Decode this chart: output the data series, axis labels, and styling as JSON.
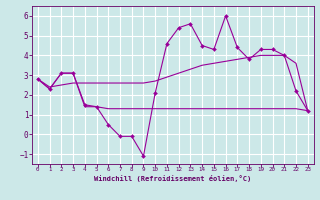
{
  "xlabel": "Windchill (Refroidissement éolien,°C)",
  "xlim": [
    -0.5,
    23.5
  ],
  "ylim": [
    -1.5,
    6.5
  ],
  "yticks": [
    -1,
    0,
    1,
    2,
    3,
    4,
    5,
    6
  ],
  "xticks": [
    0,
    1,
    2,
    3,
    4,
    5,
    6,
    7,
    8,
    9,
    10,
    11,
    12,
    13,
    14,
    15,
    16,
    17,
    18,
    19,
    20,
    21,
    22,
    23
  ],
  "bg_color": "#cce8e8",
  "grid_color": "#ffffff",
  "line_color": "#990099",
  "curve1_x": [
    0,
    1,
    2,
    3,
    4,
    5,
    6,
    7,
    8,
    9,
    10,
    11,
    12,
    13,
    14,
    15,
    16,
    17,
    18,
    19,
    20,
    21,
    22,
    23
  ],
  "curve1_y": [
    2.8,
    2.3,
    3.1,
    3.1,
    1.5,
    1.4,
    0.5,
    -0.1,
    -0.1,
    -1.1,
    2.1,
    4.6,
    5.4,
    5.6,
    4.5,
    4.3,
    6.0,
    4.4,
    3.8,
    4.3,
    4.3,
    4.0,
    2.2,
    1.2
  ],
  "curve2_x": [
    0,
    1,
    2,
    3,
    4,
    5,
    6,
    7,
    8,
    9,
    10,
    11,
    12,
    13,
    14,
    15,
    16,
    17,
    18,
    19,
    20,
    21,
    22,
    23
  ],
  "curve2_y": [
    2.8,
    2.4,
    2.5,
    2.6,
    2.6,
    2.6,
    2.6,
    2.6,
    2.6,
    2.6,
    2.7,
    2.9,
    3.1,
    3.3,
    3.5,
    3.6,
    3.7,
    3.8,
    3.9,
    4.0,
    4.0,
    4.0,
    3.6,
    1.2
  ],
  "curve3_x": [
    0,
    1,
    2,
    3,
    4,
    5,
    6,
    7,
    8,
    9,
    10,
    11,
    12,
    13,
    14,
    15,
    16,
    17,
    18,
    19,
    20,
    21,
    22,
    23
  ],
  "curve3_y": [
    2.8,
    2.3,
    3.1,
    3.1,
    1.4,
    1.4,
    1.3,
    1.3,
    1.3,
    1.3,
    1.3,
    1.3,
    1.3,
    1.3,
    1.3,
    1.3,
    1.3,
    1.3,
    1.3,
    1.3,
    1.3,
    1.3,
    1.3,
    1.2
  ]
}
